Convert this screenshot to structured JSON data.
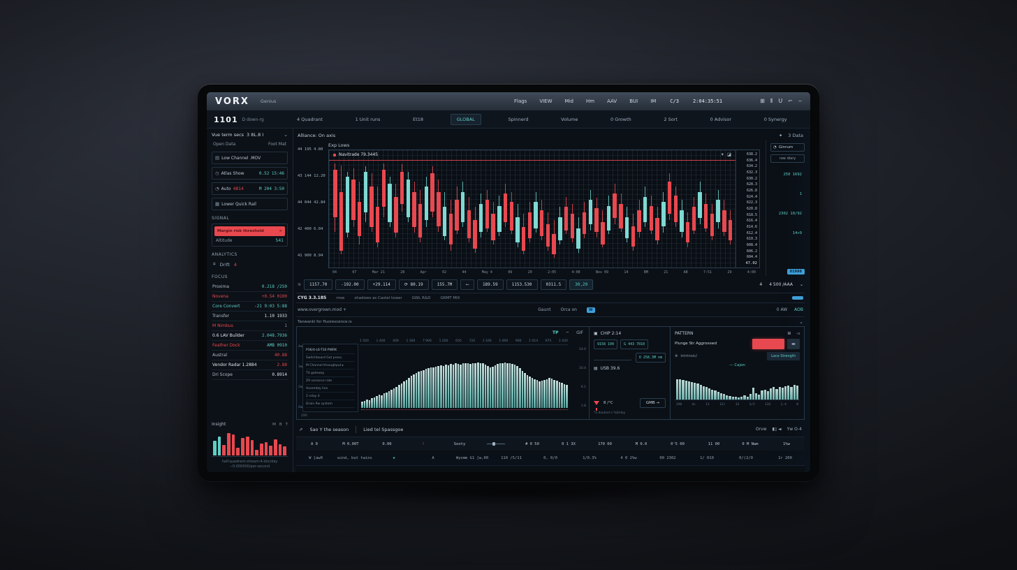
{
  "theme": {
    "accent_teal": "#5ecfc7",
    "accent_red": "#e8484f",
    "accent_blue": "#3f9fd8",
    "text_bright": "#dce6ee",
    "text_muted": "#8696a6",
    "screen_bg": "#0b1016"
  },
  "topbar": {
    "logo": "VORX",
    "tagline": "Genius",
    "menu": [
      "Flags",
      "VIEW",
      "Mid",
      "Hm",
      "AAV",
      "BUI",
      "IM"
    ],
    "clock_prefix": "C/3",
    "clock": "2:04:35:51",
    "window_icons": [
      {
        "name": "apps-grid-icon",
        "glyph": "⊞"
      },
      {
        "name": "panels-icon",
        "glyph": "⦀"
      },
      {
        "name": "user-icon",
        "glyph": "U"
      },
      {
        "name": "pin-icon",
        "glyph": "⌐"
      },
      {
        "name": "minimize-icon",
        "glyph": "‒"
      }
    ]
  },
  "tickerbar": {
    "symbol": "1101",
    "symbol_note": "D down-rg",
    "tabs": [
      {
        "label": "4 Quadrant",
        "active": false
      },
      {
        "label": "1 Unit runs",
        "active": false
      },
      {
        "label": "Et18",
        "active": false
      },
      {
        "label": "GLOBAL",
        "active": true
      },
      {
        "label": "Spinnerd",
        "active": false
      },
      {
        "label": "Volume",
        "active": false
      },
      {
        "label": "0 Growth",
        "active": false
      },
      {
        "label": "2 Sort",
        "active": false
      },
      {
        "label": "0 Advisor",
        "active": false
      },
      {
        "label": "0 Synergy",
        "active": false
      }
    ]
  },
  "headerrow": {
    "main_label": "Alliance: On axis",
    "right_star": "✦",
    "right_label": "3 Data"
  },
  "sidebar": {
    "title": "Vue term secs",
    "title_value": "3 8L.8 I",
    "tabs": [
      "Open Data",
      "Foot Mat"
    ],
    "cards": [
      {
        "icon": "file-icon",
        "glyph": "▤",
        "label": "Low Channel .MOV",
        "mid": "",
        "value": "",
        "vclass": "mutedc"
      },
      {
        "icon": "clock-icon",
        "glyph": "◷",
        "label": "Atlas Show",
        "mid": "",
        "value": "0.52 15:46",
        "vclass": "teal"
      },
      {
        "icon": "bell-icon",
        "glyph": "◔",
        "label": "Auto",
        "mid": "4814",
        "value": "M 204 3:50",
        "vclass": "teal"
      },
      {
        "icon": "layers-icon",
        "glyph": "▦",
        "label": "Lower Quick Rail",
        "mid": "",
        "value": "",
        "vclass": "mutedc"
      }
    ],
    "signal": {
      "title": "SIGNAL",
      "alert": "Margin risk threshold",
      "alert_mark": "×",
      "footer_label": "Altitude",
      "footer_value": "541"
    },
    "analytics": {
      "title": "ANALYTICS",
      "icon_label": "Drift",
      "count": "4"
    },
    "focus_title": "FOCUS",
    "positions": [
      {
        "label": "Proxima",
        "value": "0.218 /250",
        "vclass": "teal",
        "lclass": ""
      },
      {
        "label": "Novena",
        "value": "+0.54 0100",
        "vclass": "red",
        "lclass": "red"
      },
      {
        "label": "Core Convert",
        "value": "-21 9:03 5:88",
        "vclass": "teal",
        "lclass": "teal"
      },
      {
        "label": "Transfer",
        "value": "1.10 1933",
        "vclass": "bright",
        "lclass": ""
      },
      {
        "label": "M Nimbus",
        "value": "1",
        "vclass": "mutedc",
        "lclass": "red"
      },
      {
        "label": "0.6 LAV Builder",
        "value": "2.048.7936",
        "vclass": "teal",
        "lclass": "bright"
      },
      {
        "label": "Feather Dock",
        "value": "AMB 0910",
        "vclass": "teal",
        "lclass": "red"
      },
      {
        "label": "Austral",
        "value": "40.88",
        "vclass": "red",
        "lclass": ""
      },
      {
        "label": "Vendor Radar 1.2884",
        "value": "2.88",
        "vclass": "red",
        "lclass": "bright"
      },
      {
        "label": "Dri Scope",
        "value": "0.8914",
        "vclass": "bright",
        "lclass": ""
      }
    ],
    "insight": {
      "title": "Insight",
      "legend": [
        "M",
        "B",
        "T"
      ],
      "caption": "half-quadrant-stream-4-doc/day −0.000000/per-second"
    }
  },
  "main": {
    "section_label": "Exp Lows",
    "price_axis": [
      "44 195 4.80",
      "43 144 12.20",
      "44 044 42.84",
      "42 400 6.04",
      "41 900 8.94"
    ],
    "chart_label": "Navitrade 79.3445",
    "chart_icons": [
      "▾",
      "◪"
    ],
    "right_axis": [
      "638.2",
      "636.4",
      "634.2",
      "632.3",
      "630.2",
      "628.3",
      "626.8",
      "624.4",
      "622.3",
      "620.8",
      "618.5",
      "616.4",
      "614.6",
      "612.4",
      "610.3",
      "608.4",
      "606.2",
      "604.4"
    ],
    "right_axis_bottom": "47.02",
    "x_axis": [
      "04",
      "07",
      "Mar 21",
      "28",
      "Apr",
      "02",
      "44",
      "May 4",
      "06",
      "20",
      "2:05",
      "4:08",
      "Nov 09",
      "14",
      "BM",
      "21",
      "AB",
      "7:51",
      "29",
      "4:00"
    ],
    "toolbar": {
      "lead_icon": "≋",
      "chips": [
        "1157.70",
        "-192.00",
        "+29.114",
        "⟳ 80.19",
        "155.7M",
        "⟵",
        "189.59",
        "1153.530",
        "0311.5"
      ],
      "highlight": "30,29",
      "mid_mark": "4",
      "right_value": "4 500 /AAA",
      "right_chevron": "⌄"
    },
    "status": {
      "left": "CYG 3.3.185",
      "left_note": "rrow",
      "center": "shadows as Castel tower",
      "labels": [
        "GWL R&D",
        "GRMT MIX"
      ]
    },
    "section_row": {
      "left": "www.overgrown.mod +",
      "links": [
        "Gaunt",
        "Orca on"
      ],
      "badge": "W",
      "right_count": "0 AW",
      "right_link": "AOB"
    }
  },
  "flow": {
    "header": "Tanwanki for fluorescence.is",
    "header_chevron": "⌄",
    "icons": [
      "TP",
      "⌔",
      "GIF"
    ],
    "top_ticks": [
      "1 500",
      "1 400",
      "409",
      "1 300",
      "7 900",
      "1 200",
      "650",
      "724",
      "1 100",
      "1 000",
      "900",
      "1 014",
      "975",
      "1 020"
    ],
    "overlay_rows": [
      "P36/4-L6-T30 PWRK",
      "Switchboard Got press.",
      "M Channel throughput ▸",
      "T4 gateway",
      "Z9 variance rate",
      "Assembly line",
      "Σ relay 4",
      "Drain 9w system"
    ],
    "left_axis": [
      "4w",
      "3w",
      "2w",
      "0w"
    ],
    "right_axis": [
      "14.0",
      "10.4",
      "6.1",
      "1.8"
    ],
    "corner": "2X0"
  },
  "meta": {
    "header1": "CHIP 2:14",
    "chip1": "9158 100",
    "chip2": "G 443 7010",
    "chip3": "O 258.3M nm",
    "header2": "USB 39.6",
    "temp": "8 /°C",
    "button": "GMB →",
    "caption": "*a diadem's %0/day"
  },
  "pattern": {
    "title": "PATTERN",
    "icons": [
      "⊞",
      "◅"
    ],
    "row_label": "Plunge Str Aggrosswd",
    "minus": "▬",
    "sub_icon": "⎈",
    "sub_label": "intrinsic/",
    "sub_value": "Lace Strength",
    "series_label": "— Cajon",
    "corner_top": "4M",
    "corner_bottom": "1.1M",
    "x_axis": [
      "2X0",
      "4+",
      "11",
      "12)",
      "13",
      "1/2",
      "133",
      "1.4",
      "8"
    ]
  },
  "bottomtable": {
    "lead_icon": "⇗",
    "tab1": "Sao Y the season",
    "tab2": "Lied tel Spassgoe",
    "right_label": "Orvw",
    "right_toggles": "▮▯ ◄",
    "right_label2": "Yw O-4",
    "columns": [
      {
        "t": "A 0"
      },
      {
        "t": "M 0.00T"
      },
      {
        "t": "0.00"
      },
      {
        "t": "!",
        "cls": "red"
      },
      {
        "t": "Sooty"
      },
      {
        "t": "",
        "cls": "slider"
      },
      {
        "t": "# 0 50"
      },
      {
        "t": "0 1 3X"
      },
      {
        "t": "170 00"
      },
      {
        "t": "M 0.0"
      },
      {
        "t": "0'5 00"
      },
      {
        "t": "11 00"
      },
      {
        "t": "0 M Nwm"
      },
      {
        "t": "1%w"
      }
    ],
    "row": [
      {
        "t": "W [aw0"
      },
      {
        "t": "wind, but twins"
      },
      {
        "t": "❖",
        "cls": "teal"
      },
      {
        "t": "A"
      },
      {
        "t": "Wyomm G1 [w,00"
      },
      {
        "t": "110 /5/11"
      },
      {
        "t": "0, 0/0"
      },
      {
        "t": "1/0.3%"
      },
      {
        "t": "4 0 2%w"
      },
      {
        "t": "00 2302"
      },
      {
        "t": "1/ 010"
      },
      {
        "t": "0/(2/0"
      },
      {
        "t": "1r 200"
      }
    ]
  },
  "rail": {
    "button_icon": "◔",
    "button": "Ginrum",
    "chip": "raw diary",
    "values": [
      "250 1692",
      "1",
      "2302 10/92",
      "14+9"
    ],
    "badge": "01998"
  },
  "chart_data": [
    {
      "id": "candles",
      "type": "candlestick",
      "title": "Navitrade 79.3445",
      "note": "values are percent of panel height, format [wickLow, wickHigh, bodyLow, bodyHigh, dir(0=down-red,1=up-teal)]",
      "ylabels_right": [
        "638.2",
        "636.4",
        "634.2",
        "632.3",
        "630.2",
        "628.3",
        "626.8",
        "624.4",
        "622.3",
        "620.8",
        "618.5",
        "616.4",
        "614.6",
        "612.4",
        "610.3",
        "608.4",
        "606.2",
        "604.4"
      ],
      "candles": [
        [
          30,
          98,
          45,
          92,
          0
        ],
        [
          8,
          96,
          12,
          70,
          0
        ],
        [
          25,
          90,
          30,
          85,
          1
        ],
        [
          35,
          93,
          42,
          82,
          0
        ],
        [
          18,
          80,
          26,
          60,
          0
        ],
        [
          40,
          95,
          50,
          90,
          1
        ],
        [
          30,
          88,
          35,
          75,
          0
        ],
        [
          15,
          75,
          20,
          55,
          0
        ],
        [
          45,
          98,
          55,
          92,
          0
        ],
        [
          35,
          85,
          40,
          78,
          1
        ],
        [
          25,
          78,
          30,
          65,
          0
        ],
        [
          50,
          97,
          58,
          90,
          0
        ],
        [
          40,
          90,
          45,
          82,
          1
        ],
        [
          30,
          80,
          35,
          70,
          0
        ],
        [
          20,
          72,
          25,
          58,
          0
        ],
        [
          35,
          85,
          42,
          75,
          1
        ],
        [
          45,
          95,
          50,
          88,
          0
        ],
        [
          30,
          82,
          36,
          70,
          0
        ],
        [
          22,
          70,
          26,
          55,
          1
        ],
        [
          12,
          62,
          18,
          48,
          0
        ],
        [
          28,
          75,
          32,
          62,
          0
        ],
        [
          35,
          80,
          40,
          70,
          1
        ],
        [
          20,
          65,
          24,
          52,
          0
        ],
        [
          10,
          55,
          14,
          42,
          0
        ],
        [
          25,
          68,
          30,
          58,
          1
        ],
        [
          30,
          72,
          34,
          62,
          0
        ],
        [
          18,
          60,
          22,
          48,
          0
        ],
        [
          26,
          66,
          30,
          56,
          1
        ],
        [
          35,
          78,
          40,
          68,
          0
        ],
        [
          28,
          70,
          32,
          60,
          0
        ],
        [
          15,
          58,
          20,
          45,
          1
        ],
        [
          8,
          48,
          12,
          35,
          0
        ],
        [
          20,
          60,
          24,
          50,
          0
        ],
        [
          30,
          70,
          34,
          60,
          1
        ],
        [
          22,
          62,
          26,
          52,
          0
        ],
        [
          12,
          50,
          16,
          38,
          0
        ],
        [
          5,
          42,
          8,
          28,
          0
        ],
        [
          18,
          55,
          22,
          45,
          1
        ],
        [
          28,
          65,
          32,
          55,
          0
        ],
        [
          20,
          58,
          24,
          48,
          0
        ],
        [
          10,
          45,
          14,
          34,
          1
        ],
        [
          24,
          60,
          28,
          50,
          0
        ],
        [
          32,
          72,
          38,
          62,
          1
        ],
        [
          25,
          64,
          30,
          54,
          0
        ],
        [
          15,
          52,
          18,
          40,
          0
        ],
        [
          28,
          66,
          32,
          56,
          1
        ],
        [
          38,
          78,
          44,
          68,
          0
        ],
        [
          30,
          68,
          34,
          58,
          0
        ],
        [
          20,
          55,
          24,
          45,
          1
        ],
        [
          12,
          48,
          16,
          36,
          0
        ],
        [
          25,
          62,
          30,
          52,
          0
        ],
        [
          35,
          75,
          40,
          65,
          1
        ],
        [
          28,
          66,
          32,
          56,
          0
        ],
        [
          18,
          55,
          22,
          44,
          0
        ],
        [
          30,
          70,
          36,
          60,
          1
        ],
        [
          42,
          88,
          48,
          80,
          0
        ],
        [
          35,
          75,
          40,
          66,
          0
        ],
        [
          25,
          62,
          30,
          52,
          1
        ],
        [
          15,
          50,
          20,
          40,
          0
        ],
        [
          28,
          65,
          32,
          55,
          0
        ],
        [
          38,
          80,
          44,
          70,
          1
        ],
        [
          30,
          68,
          34,
          58,
          0
        ],
        [
          22,
          58,
          26,
          48,
          0
        ],
        [
          34,
          72,
          40,
          62,
          1
        ],
        [
          26,
          62,
          30,
          52,
          0
        ],
        [
          18,
          52,
          22,
          42,
          0
        ]
      ]
    },
    {
      "id": "flow",
      "type": "bar",
      "title": "Tanwanki for fluorescence.is",
      "color": "#7cc4be",
      "baseline": "red-dotted",
      "values": [
        10,
        12,
        14,
        13,
        16,
        18,
        20,
        22,
        21,
        24,
        26,
        28,
        30,
        33,
        35,
        38,
        41,
        44,
        47,
        50,
        53,
        56,
        58,
        60,
        62,
        63,
        65,
        66,
        68,
        67,
        69,
        70,
        71,
        70,
        72,
        71,
        73,
        72,
        74,
        73,
        72,
        74,
        75,
        74,
        73,
        75,
        74,
        76,
        75,
        74,
        72,
        70,
        68,
        69,
        71,
        73,
        74,
        75,
        76,
        75,
        74,
        73,
        72,
        70,
        66,
        62,
        58,
        55,
        52,
        50,
        48,
        46,
        44,
        45,
        46,
        48,
        50,
        49,
        47,
        45,
        43,
        42,
        40,
        38
      ]
    },
    {
      "id": "pattern",
      "type": "bar",
      "title": "Cajon",
      "color": "#79c2bc",
      "values": [
        70,
        68,
        66,
        64,
        62,
        60,
        57,
        54,
        50,
        46,
        42,
        38,
        34,
        30,
        26,
        22,
        18,
        15,
        12,
        10,
        9,
        8,
        10,
        14,
        9,
        18,
        40,
        22,
        16,
        30,
        34,
        28,
        38,
        42,
        36,
        44,
        40,
        46,
        48,
        44,
        50,
        47
      ]
    },
    {
      "id": "insight",
      "type": "bar",
      "title": "Insight",
      "values": [
        55,
        70,
        40,
        85,
        78,
        30,
        65,
        72,
        58,
        20,
        45,
        50,
        38,
        60,
        42,
        35
      ],
      "colors": "ttrrrrrrrrrrrrrr",
      "color_key": {
        "t": "#5ecfc7",
        "r": "#e8484f"
      }
    }
  ]
}
